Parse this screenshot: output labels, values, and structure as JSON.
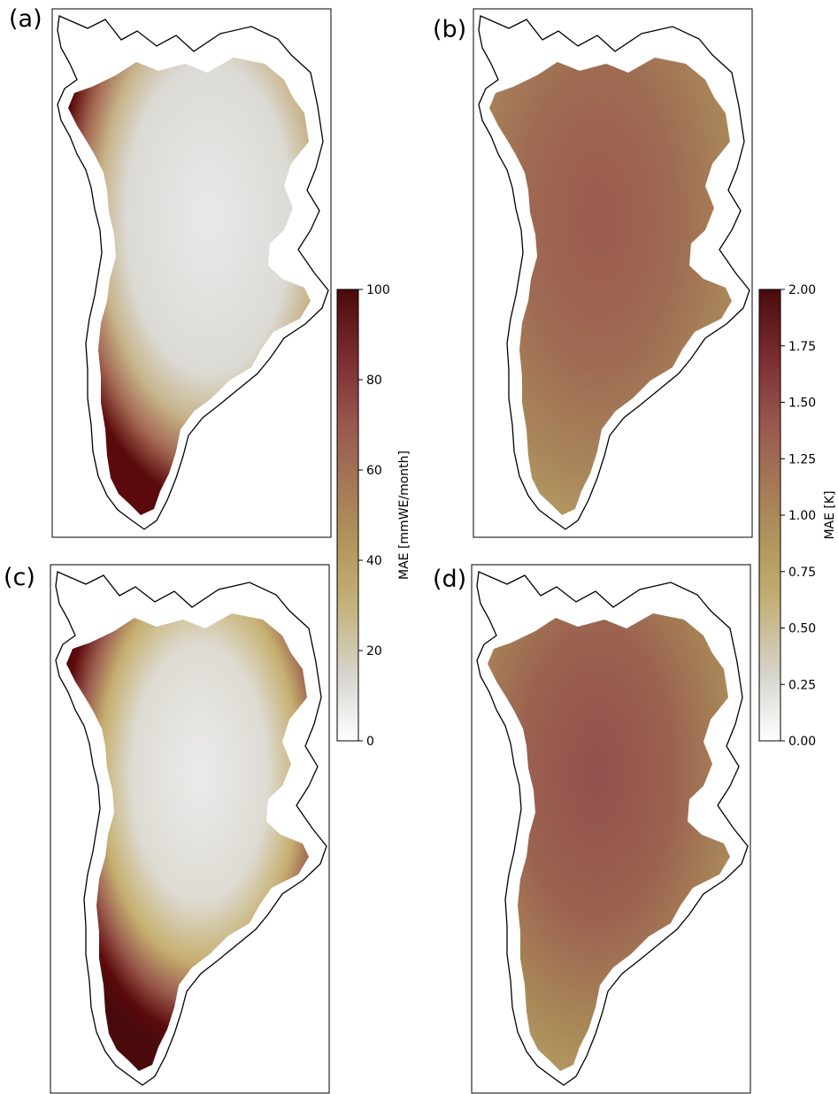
{
  "panels": [
    {
      "label": "(a)",
      "colormap": "ref"
    },
    {
      "label": "(b)",
      "colormap": "ref"
    },
    {
      "label": "(c)",
      "colormap": "ref"
    },
    {
      "label": "(d)",
      "colormap": "ref"
    }
  ],
  "colorbars": [
    {
      "label": "MAE [mmWE/month]",
      "range": [
        0,
        100
      ],
      "ticks": [
        "0",
        "20",
        "40",
        "60",
        "80",
        "100"
      ]
    },
    {
      "label": "MAE [K]",
      "range": [
        0.0,
        2.0
      ],
      "ticks": [
        "0.00",
        "0.25",
        "0.50",
        "0.75",
        "1.00",
        "1.25",
        "1.50",
        "1.75",
        "2.00"
      ]
    }
  ],
  "colormap": {
    "stops": [
      "#ffffff",
      "#d6d3cc",
      "#b8a468",
      "#a88a58",
      "#9b6a52",
      "#8a4447",
      "#6b1f24",
      "#4a0a0c"
    ]
  },
  "colors": {
    "frame": "#000000",
    "ice_center_a": "#e6e6e6",
    "ice_edge_a": "#5a0a0c",
    "ice_mid_b": "#9a5a50",
    "ice_edge_b": "#b8a468"
  }
}
